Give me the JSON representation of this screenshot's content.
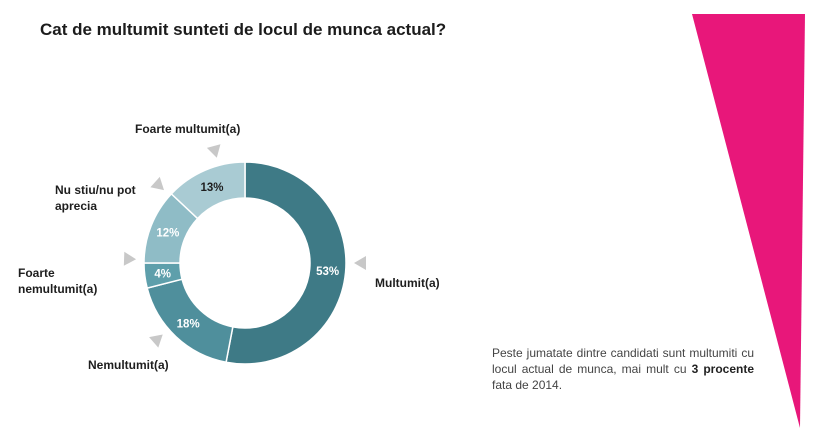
{
  "colors": {
    "accent": "#e8177a",
    "multumit": "#3e7a86",
    "nemultumit": "#4f8f9c",
    "foarte_nemultumit": "#5e9fab",
    "nu_stiu": "#8fbcc6",
    "foarte_multumit": "#a9cbd3",
    "marker": "#c8c8c8"
  },
  "note": {
    "pre": "Peste jumatate dintre candidati sunt multumiti cu locul actual de munca, mai mult cu ",
    "bold": "3 procente",
    "post": " fata de 2014."
  },
  "chart_data": {
    "type": "pie",
    "title": "Cat de multumit sunteti de locul de munca actual?",
    "slices": [
      {
        "label": "Multumit(a)",
        "value": 53,
        "display": "53%",
        "label_lines": [
          "Multumit(a)"
        ]
      },
      {
        "label": "Nemultumit(a)",
        "value": 18,
        "display": "18%",
        "label_lines": [
          "Nemultumit(a)"
        ]
      },
      {
        "label": "Foarte nemultumit(a)",
        "value": 4,
        "display": "4%",
        "label_lines": [
          "Foarte",
          "nemultumit(a)"
        ]
      },
      {
        "label": "Nu stiu/nu pot aprecia",
        "value": 12,
        "display": "12%",
        "label_lines": [
          "Nu stiu/nu pot",
          "aprecia"
        ]
      },
      {
        "label": "Foarte multumit(a)",
        "value": 13,
        "display": "13%",
        "label_lines": [
          "Foarte multumit(a)"
        ]
      }
    ]
  }
}
